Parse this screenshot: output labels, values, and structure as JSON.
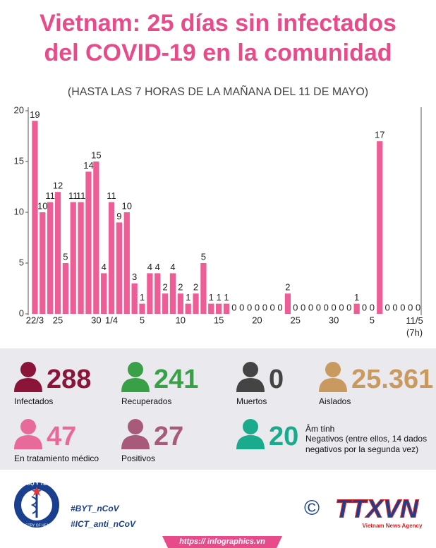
{
  "chart_data": {
    "type": "bar",
    "title": "Vietnam: 25 días sin infectados del COVID-19 en la comunidad",
    "subtitle": "(HASTA LAS 7 HORAS DE LA MAÑANA DEL 11 DE MAYO)",
    "categories": [
      "22/3",
      null,
      null,
      "25",
      null,
      null,
      null,
      null,
      "30",
      null,
      "1/4",
      null,
      null,
      null,
      "5",
      null,
      null,
      null,
      null,
      "10",
      null,
      null,
      null,
      null,
      "15",
      null,
      null,
      null,
      null,
      "20",
      null,
      null,
      null,
      null,
      "25",
      null,
      null,
      null,
      null,
      "30",
      null,
      null,
      null,
      null,
      "5",
      null,
      null,
      null,
      null,
      null,
      "11/5 (7h)"
    ],
    "values": [
      19,
      10,
      11,
      12,
      5,
      11,
      11,
      14,
      15,
      4,
      11,
      9,
      10,
      3,
      1,
      4,
      4,
      2,
      4,
      2,
      1,
      2,
      5,
      1,
      1,
      1,
      0,
      0,
      0,
      0,
      0,
      0,
      0,
      2,
      0,
      0,
      0,
      0,
      0,
      0,
      0,
      0,
      1,
      0,
      0,
      17,
      0,
      0,
      0,
      0,
      0
    ],
    "color": "#ee5d95",
    "ylim": [
      0,
      20
    ],
    "yticks": [
      0,
      5,
      10,
      15,
      20
    ]
  },
  "stats": [
    {
      "value": "288",
      "label": "Infectados",
      "color": "#8a1538"
    },
    {
      "value": "241",
      "label": "Recuperados",
      "color": "#3aa048"
    },
    {
      "value": "0",
      "label": "Muertos",
      "color": "#444444"
    },
    {
      "value": "25.361",
      "label": "Aislados",
      "color": "#c99a60"
    },
    {
      "value": "47",
      "label": "En tratamiento médico",
      "color": "#e86a9a"
    },
    {
      "value": "27",
      "label": "Positivos",
      "color": "#a85a7a"
    },
    {
      "value": "20",
      "label_vi": "Âm tính",
      "label": "Negativos (entre ellos, 14 dados negativos por la segunda vez)",
      "color": "#1aaa8c"
    }
  ],
  "footer": {
    "logo_top": "BỘ Y TẾ",
    "logo_bottom": "MINISTRY OF HEALTH",
    "hashtags": [
      "#BYT_nCoV",
      "#ICT_anti_nCoV"
    ],
    "copyright": "©",
    "agency": "TTXVN",
    "agency_en": "Vietnam News Agency",
    "url": "https:// infographics.vn"
  }
}
